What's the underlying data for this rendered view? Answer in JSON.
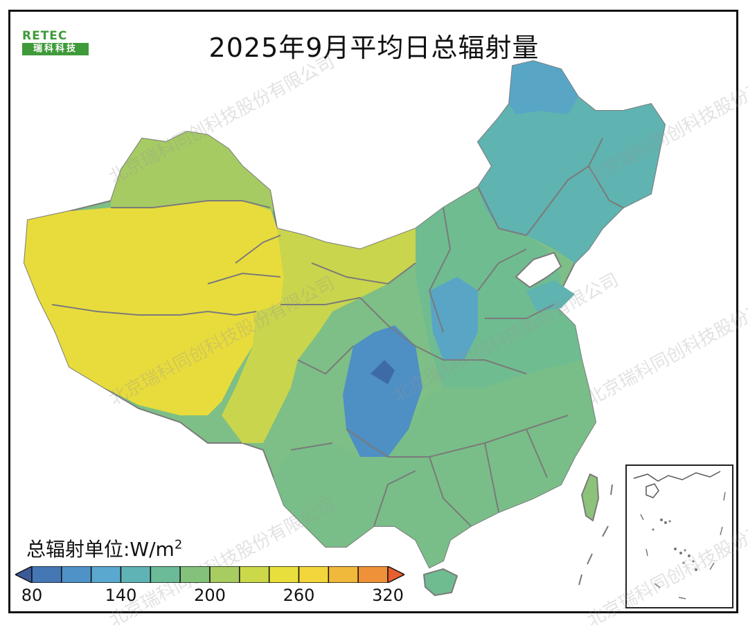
{
  "title": "2025年9月平均日总辐射量",
  "logo": {
    "top": "RETEC",
    "bottom": "瑞科科技"
  },
  "watermark": "北京瑞科同创科技股份有限公司",
  "unit": {
    "prefix": "总辐射单位:W/m",
    "exp": "2"
  },
  "colorbar": {
    "min": 80,
    "max": 320,
    "step": 20,
    "tick_labels": [
      "80",
      "140",
      "200",
      "260",
      "320"
    ],
    "colors": [
      "#3b5a9a",
      "#4577b4",
      "#4e92c8",
      "#5aa8cf",
      "#5fb3b5",
      "#6bbb98",
      "#84c27c",
      "#a7cc5f",
      "#cad84a",
      "#e8df3c",
      "#f3d63c",
      "#f1b93c",
      "#ee9138",
      "#e75f2f"
    ]
  },
  "map_regions": {
    "northeast_top": "#58a5c6",
    "northeast": "#5fb3b0",
    "north_china": "#6fbc91",
    "xinjiang_north": "#a6cb63",
    "tarim": "#e8dc3c",
    "tibet": "#eade3a",
    "qinghai": "#c9d54d",
    "sichuan_basin": "#4e8fc4",
    "south": "#79be88",
    "taiwan": "#8cc27a",
    "hainan": "#6fbc90"
  }
}
